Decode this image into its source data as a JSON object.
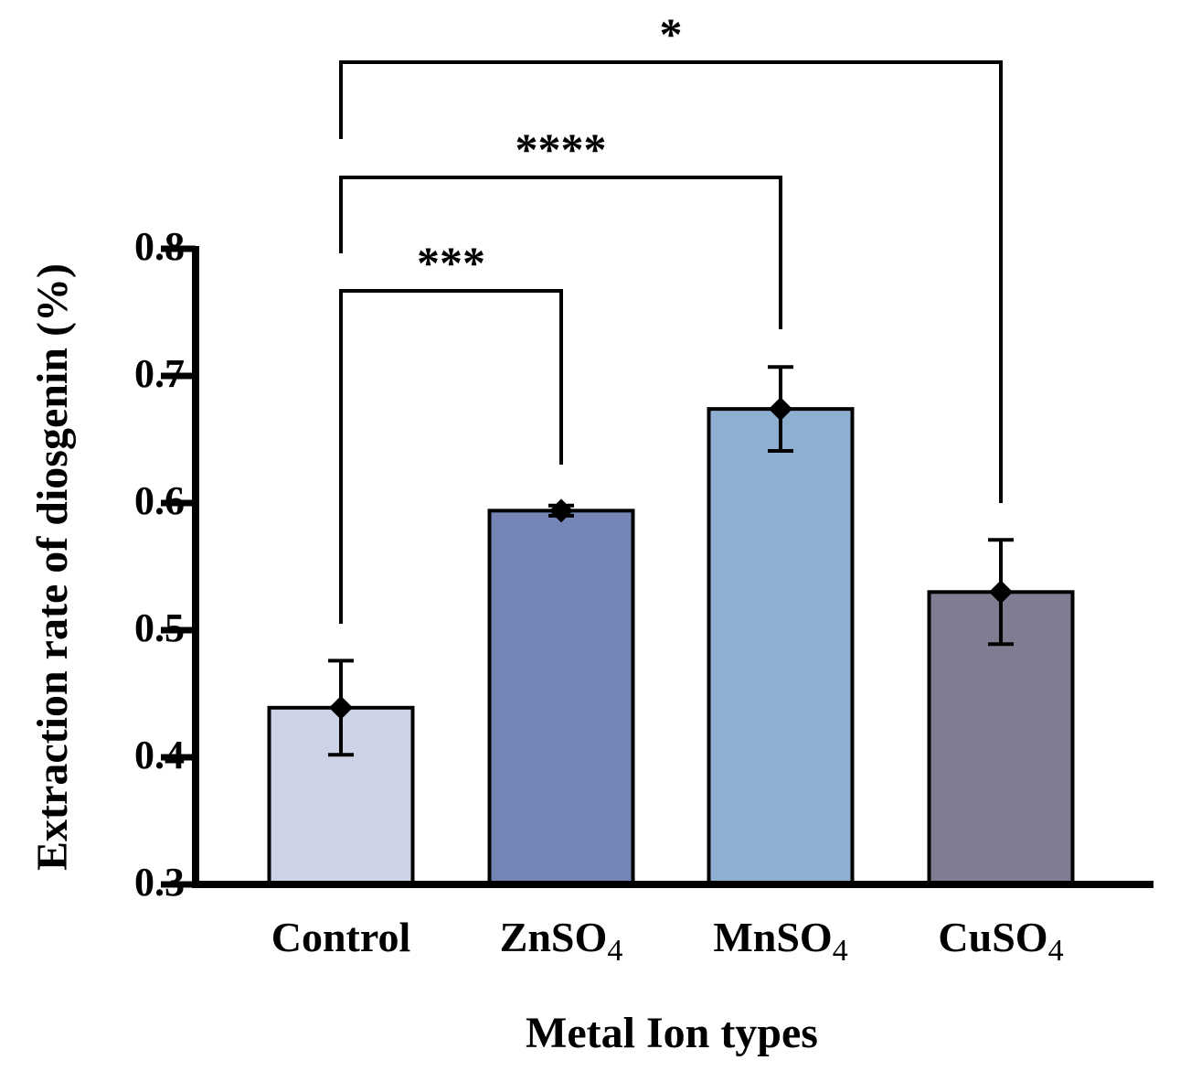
{
  "chart_data": {
    "type": "bar",
    "title": "",
    "xlabel": "Metal Ion types",
    "ylabel": "Extraction rate of diosgenin (%)",
    "ylim": [
      0.3,
      0.8
    ],
    "yticks": [
      0.3,
      0.4,
      0.5,
      0.6,
      0.7,
      0.8
    ],
    "ytick_labels": [
      "0.3",
      "0.4",
      "0.5",
      "0.6",
      "0.7",
      "0.8"
    ],
    "categories": [
      {
        "base": "Control",
        "sub": ""
      },
      {
        "base": "ZnSO",
        "sub": "4"
      },
      {
        "base": "MnSO",
        "sub": "4"
      },
      {
        "base": "CuSO",
        "sub": "4"
      }
    ],
    "values": [
      0.439,
      0.594,
      0.674,
      0.53
    ],
    "errors": [
      0.037,
      0.004,
      0.033,
      0.041
    ],
    "colors": [
      "#cdd3e6",
      "#7586b6",
      "#8eaed2",
      "#7f7d92"
    ],
    "significance": [
      {
        "from": 0,
        "to": 1,
        "label": "***"
      },
      {
        "from": 0,
        "to": 2,
        "label": "****"
      },
      {
        "from": 0,
        "to": 3,
        "label": "*"
      }
    ]
  }
}
